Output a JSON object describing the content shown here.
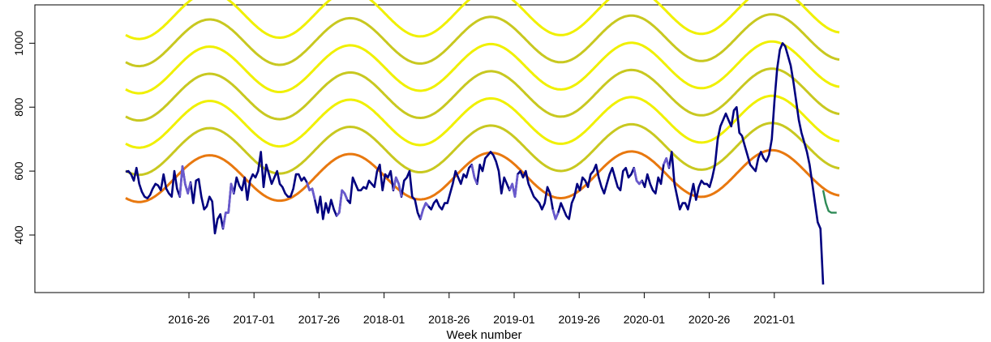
{
  "chart_data": {
    "type": "line",
    "title": "",
    "xlabel": "Week number",
    "ylabel": "",
    "x_tick_labels": [
      "2016-26",
      "2017-01",
      "2017-26",
      "2018-01",
      "2018-26",
      "2019-01",
      "2019-26",
      "2020-01",
      "2020-26",
      "2021-01"
    ],
    "y_ticks": [
      400,
      600,
      800,
      1000
    ],
    "ylim": [
      220,
      1120
    ],
    "grid": false,
    "legend": "none",
    "x_range_weeks": [
      0,
      264
    ],
    "baseline": {
      "offset": 575,
      "amplitude": 72,
      "trend_per_year": 4,
      "peak_week": 31,
      "color": "#e8780f"
    },
    "band_offsets": [
      {
        "offset": 85,
        "color": "#c8c820"
      },
      {
        "offset": 170,
        "color": "#f0f000"
      },
      {
        "offset": 255,
        "color": "#c8c820"
      },
      {
        "offset": 340,
        "color": "#f0f000"
      },
      {
        "offset": 425,
        "color": "#c8c820"
      },
      {
        "offset": 510,
        "color": "#f0f000"
      }
    ],
    "series": [
      {
        "color": "#00007f",
        "values": [
          598,
          600,
          590,
          570,
          610,
          560,
          535,
          520,
          515,
          525,
          545,
          560,
          555,
          540,
          590,
          545,
          530,
          520,
          600,
          545,
          520,
          615,
          560,
          530,
          565,
          500,
          570,
          575,
          520,
          480,
          490,
          520,
          505,
          405,
          450,
          465,
          420,
          470,
          470,
          560,
          530,
          580,
          555,
          540,
          580,
          510,
          570,
          590,
          580,
          600,
          660,
          550,
          620,
          590,
          560,
          580,
          600,
          560,
          550,
          530,
          520,
          520,
          545,
          590,
          590,
          570,
          580,
          565,
          540,
          545,
          510,
          470,
          520,
          450,
          500,
          470,
          510,
          480,
          460,
          470,
          540,
          530,
          510,
          500,
          580,
          560,
          540,
          540,
          550,
          545,
          570,
          560,
          550,
          600,
          620,
          540,
          590,
          580,
          600,
          540,
          580,
          560,
          520,
          570,
          580,
          600,
          520,
          510,
          470,
          450,
          480,
          500,
          490,
          480,
          500,
          510,
          490,
          480,
          500,
          500,
          530,
          560,
          600,
          580,
          560,
          590,
          580,
          610,
          620,
          580,
          560,
          620,
          600,
          640,
          650,
          660,
          650,
          630,
          600,
          530,
          580,
          560,
          540,
          560,
          520,
          590,
          600,
          580,
          600,
          560,
          540,
          520,
          510,
          500,
          480,
          500,
          550,
          530,
          480,
          450,
          470,
          500,
          480,
          460,
          450,
          500,
          520,
          560,
          540,
          580,
          570,
          550,
          590,
          600,
          620,
          580,
          550,
          530,
          560,
          590,
          610,
          580,
          550,
          540,
          600,
          610,
          580,
          590,
          610,
          570,
          560,
          570,
          550,
          590,
          560,
          540,
          530,
          580,
          560,
          620,
          640,
          610,
          660,
          560,
          520,
          480,
          500,
          500,
          480,
          520,
          560,
          510,
          550,
          570,
          560,
          560,
          550,
          580,
          620,
          700,
          740,
          760,
          780,
          760,
          740,
          790,
          800,
          720,
          710,
          680,
          650,
          620,
          610,
          600,
          640,
          660,
          640,
          630,
          650,
          700,
          820,
          920,
          980,
          1000,
          990,
          960,
          930,
          880,
          820,
          760,
          720,
          690,
          660,
          620,
          560,
          500,
          440,
          420,
          245
        ],
        "highlight_color": "#6a5acd",
        "highlight_ranges": [
          [
            20,
            24
          ],
          [
            36,
            40
          ],
          [
            67,
            70
          ],
          [
            78,
            82
          ],
          [
            99,
            102
          ],
          [
            109,
            112
          ],
          [
            128,
            130
          ],
          [
            142,
            145
          ],
          [
            158,
            160
          ],
          [
            188,
            191
          ],
          [
            199,
            201
          ]
        ]
      },
      {
        "color": "#2e8b57",
        "values_start_week": 258,
        "values": [
          540,
          500,
          475,
          470,
          470,
          470
        ]
      }
    ]
  }
}
